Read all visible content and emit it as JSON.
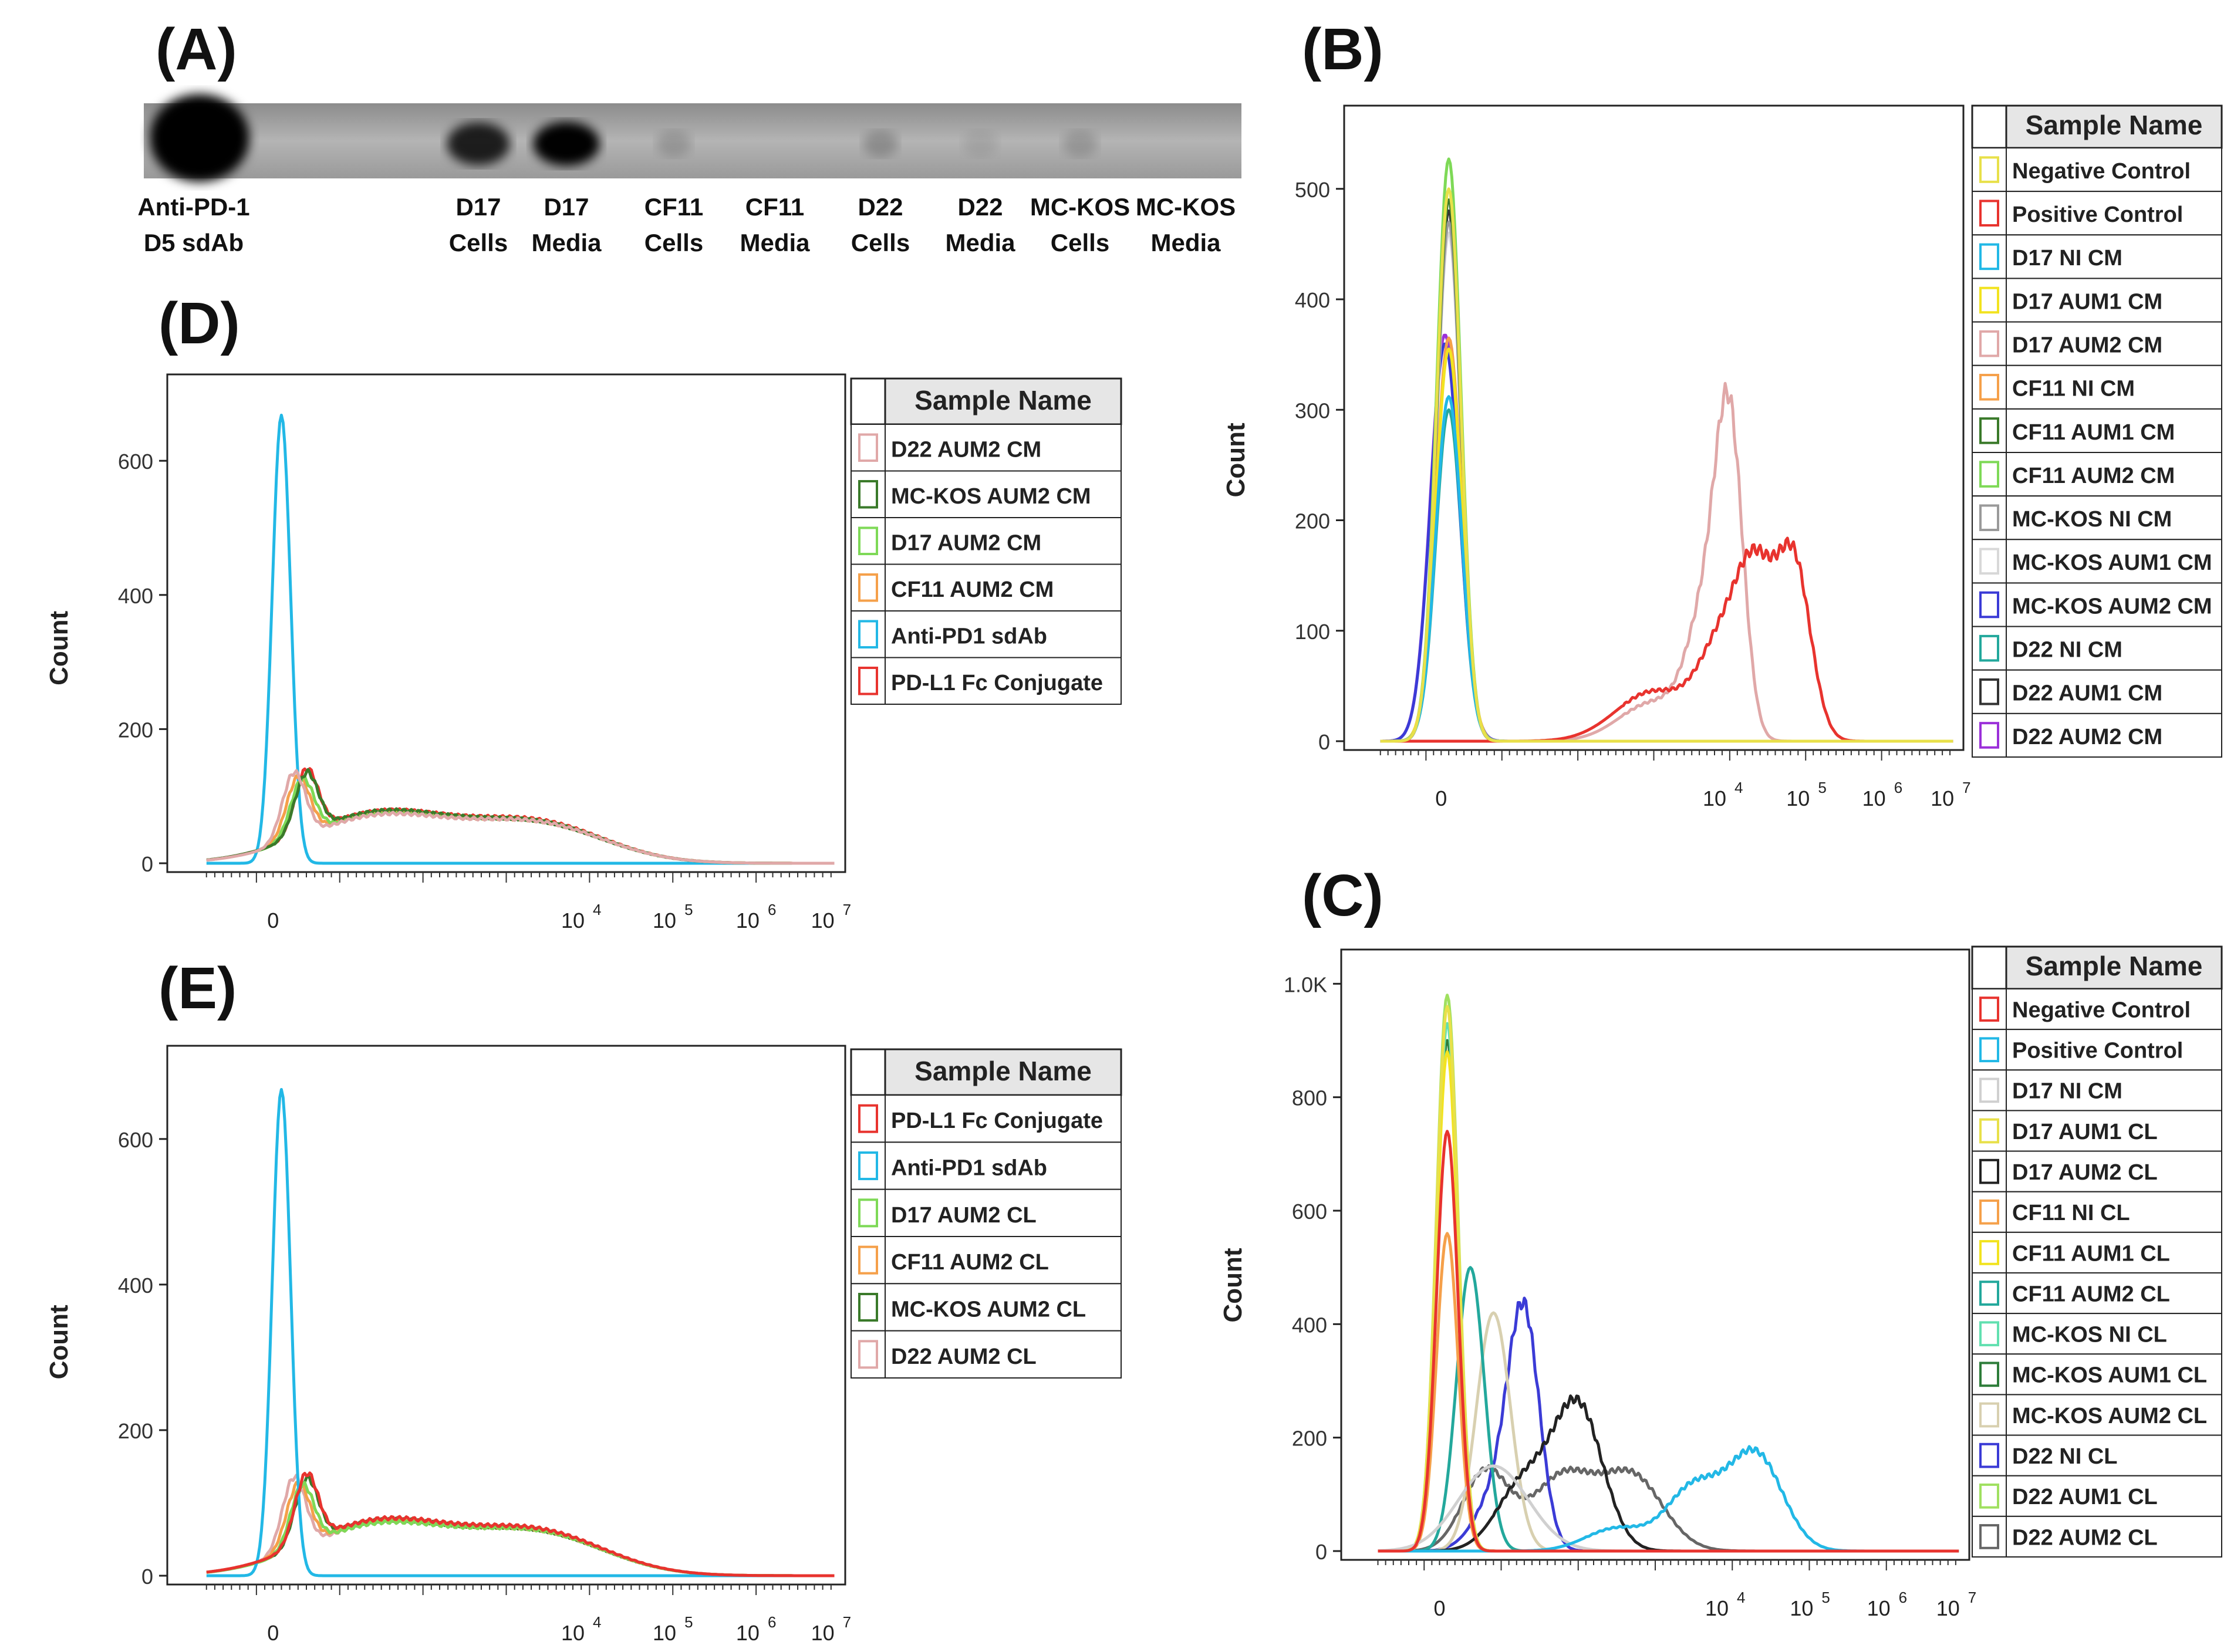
{
  "figure": {
    "blot": {
      "panel_label": "(A)",
      "lanes": [
        {
          "line1": "Anti-PD-1",
          "line2": "D5 sdAb",
          "intensity": 1.0
        },
        {
          "line1": "D17",
          "line2": "Cells",
          "intensity": 0.8
        },
        {
          "line1": "D17",
          "line2": "Media",
          "intensity": 0.95
        },
        {
          "line1": "CF11",
          "line2": "Cells",
          "intensity": 0.15
        },
        {
          "line1": "CF11",
          "line2": "Media",
          "intensity": 0.0
        },
        {
          "line1": "D22",
          "line2": "Cells",
          "intensity": 0.2
        },
        {
          "line1": "D22",
          "line2": "Media",
          "intensity": 0.08
        },
        {
          "line1": "MC-KOS",
          "line2": "Cells",
          "intensity": 0.15
        },
        {
          "line1": "MC-KOS",
          "line2": "Media",
          "intensity": 0.0
        }
      ]
    },
    "legend_header": "Sample Name",
    "y_axis_label": "Count",
    "x_tick_zero": "0",
    "x_tick_base": "10",
    "x_tick_exponents": [
      "4",
      "5",
      "6",
      "7"
    ],
    "ytick_1k": "1.0K"
  },
  "chart_data": [
    {
      "id": "B",
      "panel_label": "(B)",
      "type": "line",
      "title": "",
      "xlabel": "",
      "ylabel": "Count",
      "xscale": "biexponential",
      "xlim": [
        -1,
        7
      ],
      "ylim": [
        0,
        570
      ],
      "yticks": [
        0,
        100,
        200,
        300,
        400,
        500
      ],
      "series": [
        {
          "name": "Negative Control",
          "color": "#e8e04a",
          "peaks": [
            [
              0.3,
              500,
              0.16
            ]
          ]
        },
        {
          "name": "Positive Control",
          "color": "#e8332e",
          "peaks": [
            [
              3.0,
              45,
              0.5
            ],
            [
              3.9,
              80,
              0.3
            ],
            [
              4.35,
              135,
              0.25
            ],
            [
              4.85,
              155,
              0.22
            ]
          ]
        },
        {
          "name": "D17 NI CM",
          "color": "#22b8e6",
          "peaks": [
            [
              0.3,
              312,
              0.17
            ]
          ]
        },
        {
          "name": "D17 AUM1 CM",
          "color": "#f2e320",
          "peaks": [
            [
              0.3,
              355,
              0.17
            ]
          ]
        },
        {
          "name": "D17 AUM2 CM",
          "color": "#e0a8a8",
          "peaks": [
            [
              3.0,
              35,
              0.45
            ],
            [
              3.7,
              110,
              0.25
            ],
            [
              4.0,
              255,
              0.18
            ]
          ]
        },
        {
          "name": "CF11 NI CM",
          "color": "#f5a04a",
          "peaks": [
            [
              0.3,
              365,
              0.17
            ]
          ]
        },
        {
          "name": "CF11 AUM1 CM",
          "color": "#3a7a2a",
          "peaks": [
            [
              0.3,
              490,
              0.16
            ]
          ]
        },
        {
          "name": "CF11 AUM2 CM",
          "color": "#7ed957",
          "peaks": [
            [
              0.3,
              527,
              0.16
            ]
          ]
        },
        {
          "name": "MC-KOS NI CM",
          "color": "#9a9a9a",
          "peaks": [
            [
              0.3,
              470,
              0.16
            ]
          ]
        },
        {
          "name": "MC-KOS AUM1 CM",
          "color": "#d8d8d8",
          "peaks": [
            [
              0.3,
              460,
              0.16
            ]
          ]
        },
        {
          "name": "MC-KOS AUM2 CM",
          "color": "#3b3bd6",
          "peaks": [
            [
              0.25,
              360,
              0.19
            ]
          ]
        },
        {
          "name": "D22 NI CM",
          "color": "#23a89c",
          "peaks": [
            [
              0.3,
              300,
              0.17
            ]
          ]
        },
        {
          "name": "D22 AUM1 CM",
          "color": "#333333",
          "peaks": [
            [
              0.3,
              480,
              0.16
            ]
          ]
        },
        {
          "name": "D22 AUM2 CM",
          "color": "#9b30d9",
          "peaks": [
            [
              0.25,
              368,
              0.19
            ]
          ]
        }
      ]
    },
    {
      "id": "C",
      "panel_label": "(C)",
      "type": "line",
      "title": "",
      "xlabel": "",
      "ylabel": "Count",
      "xscale": "biexponential",
      "xlim": [
        -1,
        7
      ],
      "ylim": [
        0,
        1050
      ],
      "yticks": [
        0,
        200,
        400,
        600,
        800,
        1000
      ],
      "series": [
        {
          "name": "Negative Control",
          "color": "#e8332e",
          "peaks": [
            [
              0.3,
              740,
              0.14
            ]
          ]
        },
        {
          "name": "Positive Control",
          "color": "#22b8e6",
          "peaks": [
            [
              2.5,
              40,
              0.4
            ],
            [
              3.5,
              110,
              0.35
            ],
            [
              4.3,
              170,
              0.35
            ]
          ]
        },
        {
          "name": "D17 NI CM",
          "color": "#d0d0d0",
          "peaks": [
            [
              0.9,
              150,
              0.45
            ]
          ]
        },
        {
          "name": "D17 AUM1 CL",
          "color": "#e8e04a",
          "peaks": [
            [
              0.3,
              960,
              0.14
            ]
          ]
        },
        {
          "name": "D17 AUM2 CL",
          "color": "#222222",
          "peaks": [
            [
              1.3,
              120,
              0.35
            ],
            [
              2.0,
              250,
              0.32
            ]
          ]
        },
        {
          "name": "CF11 NI CL",
          "color": "#f5a04a",
          "peaks": [
            [
              0.3,
              560,
              0.14
            ]
          ]
        },
        {
          "name": "CF11 AUM1 CL",
          "color": "#f2e320",
          "peaks": [
            [
              0.3,
              880,
              0.14
            ]
          ]
        },
        {
          "name": "CF11 AUM2 CL",
          "color": "#23a89c",
          "peaks": [
            [
              0.6,
              500,
              0.18
            ]
          ]
        },
        {
          "name": "MC-KOS NI CL",
          "color": "#62e0b0",
          "peaks": [
            [
              0.3,
              930,
              0.14
            ]
          ]
        },
        {
          "name": "MC-KOS AUM1 CL",
          "color": "#2e7d3a",
          "peaks": [
            [
              0.3,
              900,
              0.14
            ]
          ]
        },
        {
          "name": "MC-KOS AUM2 CL",
          "color": "#d8d0b0",
          "peaks": [
            [
              0.9,
              420,
              0.22
            ]
          ]
        },
        {
          "name": "D22 NI CL",
          "color": "#3b3bd6",
          "peaks": [
            [
              1.0,
              110,
              0.3
            ],
            [
              1.3,
              370,
              0.2
            ]
          ]
        },
        {
          "name": "D22 AUM1 CL",
          "color": "#a0e060",
          "peaks": [
            [
              0.3,
              980,
              0.14
            ]
          ]
        },
        {
          "name": "D22 AUM2 CL",
          "color": "#666666",
          "peaks": [
            [
              0.8,
              140,
              0.3
            ],
            [
              1.8,
              130,
              0.4
            ],
            [
              2.7,
              130,
              0.4
            ]
          ]
        }
      ]
    },
    {
      "id": "D",
      "panel_label": "(D)",
      "type": "line",
      "title": "",
      "xlabel": "",
      "ylabel": "Count",
      "xscale": "biexponential",
      "xlim": [
        -1,
        7
      ],
      "ylim": [
        0,
        720
      ],
      "yticks": [
        0,
        200,
        400,
        600
      ],
      "series": [
        {
          "name": "D22 AUM2 CM",
          "color": "#e0a8a8",
          "peaks": [
            [
              0.45,
              100,
              0.14
            ],
            [
              1.5,
              70,
              0.9
            ],
            [
              3.4,
              55,
              0.8
            ]
          ]
        },
        {
          "name": "MC-KOS AUM2 CM",
          "color": "#3a7a2a",
          "peaks": [
            [
              0.6,
              90,
              0.14
            ],
            [
              1.5,
              75,
              0.9
            ],
            [
              3.4,
              55,
              0.8
            ]
          ]
        },
        {
          "name": "D17 AUM2 CM",
          "color": "#7ed957",
          "peaks": [
            [
              0.55,
              85,
              0.14
            ],
            [
              1.5,
              72,
              0.9
            ],
            [
              3.4,
              55,
              0.8
            ]
          ]
        },
        {
          "name": "CF11 AUM2 CM",
          "color": "#f5a04a",
          "peaks": [
            [
              0.5,
              90,
              0.14
            ],
            [
              1.5,
              72,
              0.9
            ],
            [
              3.4,
              55,
              0.8
            ]
          ]
        },
        {
          "name": "Anti-PD1 sdAb",
          "color": "#22b8e6",
          "peaks": [
            [
              0.3,
              668,
              0.11
            ]
          ]
        },
        {
          "name": "PD-L1 Fc Conjugate",
          "color": "#e8332e",
          "peaks": [
            [
              0.6,
              95,
              0.14
            ],
            [
              1.5,
              75,
              0.9
            ],
            [
              3.4,
              57,
              0.8
            ]
          ]
        }
      ]
    },
    {
      "id": "E",
      "panel_label": "(E)",
      "type": "line",
      "title": "",
      "xlabel": "",
      "ylabel": "Count",
      "xscale": "biexponential",
      "xlim": [
        -1,
        7
      ],
      "ylim": [
        0,
        720
      ],
      "yticks": [
        0,
        200,
        400,
        600
      ],
      "series": [
        {
          "name": "PD-L1 Fc Conjugate",
          "color": "#e8332e",
          "peaks": [
            [
              0.6,
              95,
              0.14
            ],
            [
              1.5,
              75,
              0.9
            ],
            [
              3.4,
              57,
              0.8
            ]
          ]
        },
        {
          "name": "Anti-PD1 sdAb",
          "color": "#22b8e6",
          "peaks": [
            [
              0.3,
              668,
              0.11
            ]
          ]
        },
        {
          "name": "D17 AUM2 CL",
          "color": "#7ed957",
          "peaks": [
            [
              0.55,
              85,
              0.14
            ],
            [
              1.5,
              70,
              0.9
            ],
            [
              3.4,
              55,
              0.8
            ]
          ]
        },
        {
          "name": "CF11 AUM2 CL",
          "color": "#f5a04a",
          "peaks": [
            [
              0.5,
              88,
              0.14
            ],
            [
              1.5,
              72,
              0.9
            ],
            [
              3.4,
              55,
              0.8
            ]
          ]
        },
        {
          "name": "MC-KOS AUM2 CL",
          "color": "#3a7a2a",
          "peaks": [
            [
              0.6,
              90,
              0.14
            ],
            [
              1.5,
              73,
              0.9
            ],
            [
              3.4,
              55,
              0.8
            ]
          ]
        },
        {
          "name": "D22 AUM2 CL",
          "color": "#e0a8a8",
          "peaks": [
            [
              0.45,
              100,
              0.14
            ],
            [
              1.5,
              70,
              0.9
            ],
            [
              3.4,
              55,
              0.8
            ]
          ]
        }
      ]
    }
  ]
}
